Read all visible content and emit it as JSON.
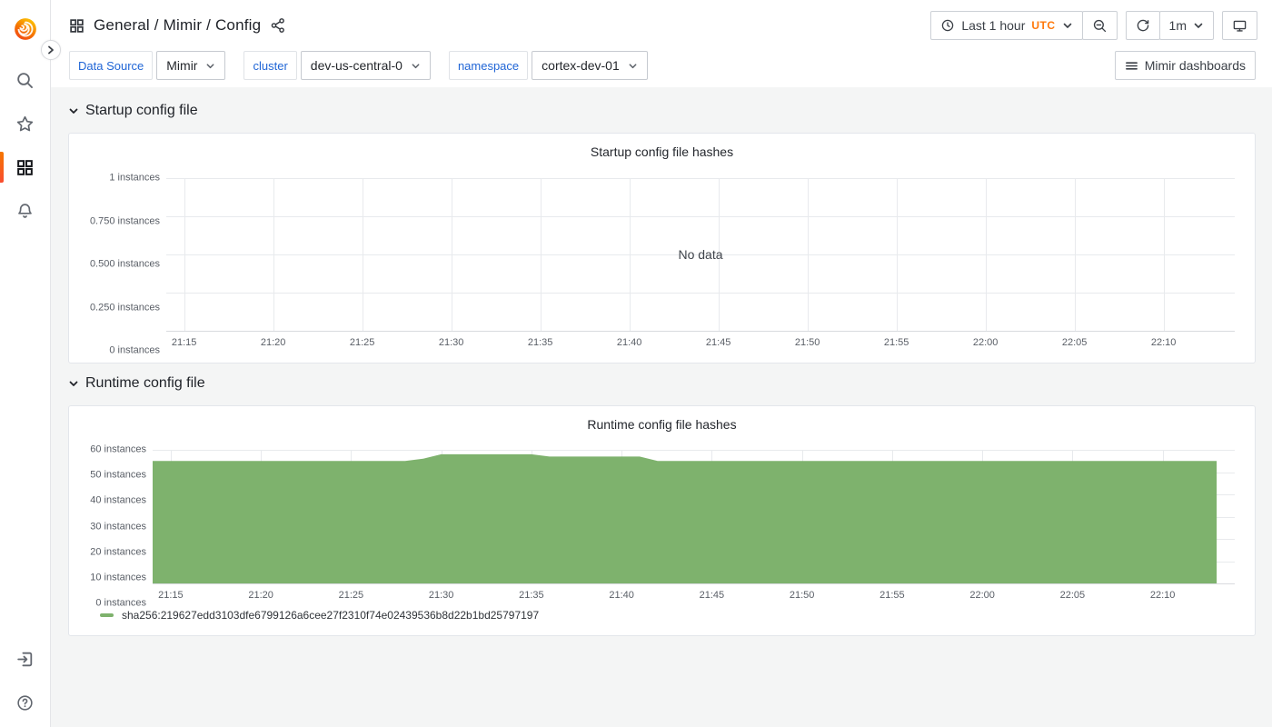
{
  "header": {
    "breadcrumb": "General / Mimir / Config",
    "time_picker": {
      "label": "Last 1 hour",
      "timezone": "UTC",
      "timezone_color": "#ff780a"
    },
    "refresh_interval": "1m"
  },
  "submenu": {
    "filters": [
      {
        "label": "Data Source",
        "value": "Mimir"
      },
      {
        "label": "cluster",
        "value": "dev-us-central-0"
      },
      {
        "label": "namespace",
        "value": "cortex-dev-01"
      }
    ],
    "dashboards_button": "Mimir dashboards",
    "label_color": "#2166d6"
  },
  "sections": [
    {
      "title": "Startup config file"
    },
    {
      "title": "Runtime config file"
    }
  ],
  "chart_data": [
    {
      "type": "line",
      "title": "Startup config file hashes",
      "no_data_text": "No data",
      "grid": true,
      "x_domain": [
        "21:14",
        "22:14"
      ],
      "x_ticks": [
        "21:15",
        "21:20",
        "21:25",
        "21:30",
        "21:35",
        "21:40",
        "21:45",
        "21:50",
        "21:55",
        "22:00",
        "22:05",
        "22:10"
      ],
      "y_ticks": [
        "1 instances",
        "0.750 instances",
        "0.500 instances",
        "0.250 instances",
        "0 instances"
      ],
      "ylim": [
        0,
        1
      ],
      "series": []
    },
    {
      "type": "area",
      "title": "Runtime config file hashes",
      "grid": true,
      "legend_position": "bottom",
      "x_domain": [
        "21:14",
        "22:14"
      ],
      "x_ticks": [
        "21:15",
        "21:20",
        "21:25",
        "21:30",
        "21:35",
        "21:40",
        "21:45",
        "21:50",
        "21:55",
        "22:00",
        "22:05",
        "22:10"
      ],
      "y_ticks": [
        "60 instances",
        "50 instances",
        "40 instances",
        "30 instances",
        "20 instances",
        "10 instances",
        "0 instances"
      ],
      "ylim": [
        0,
        60
      ],
      "series": [
        {
          "name": "sha256:219627edd3103dfe6799126a6cee27f2310f74e02439536b8d22b1bd25797197",
          "color": "#7eb26d",
          "points": [
            [
              "21:14",
              55
            ],
            [
              "21:28",
              55
            ],
            [
              "21:29",
              56
            ],
            [
              "21:30",
              58
            ],
            [
              "21:35",
              58
            ],
            [
              "21:36",
              57
            ],
            [
              "21:41",
              57
            ],
            [
              "21:42",
              55
            ],
            [
              "22:13",
              55
            ]
          ]
        }
      ]
    }
  ]
}
